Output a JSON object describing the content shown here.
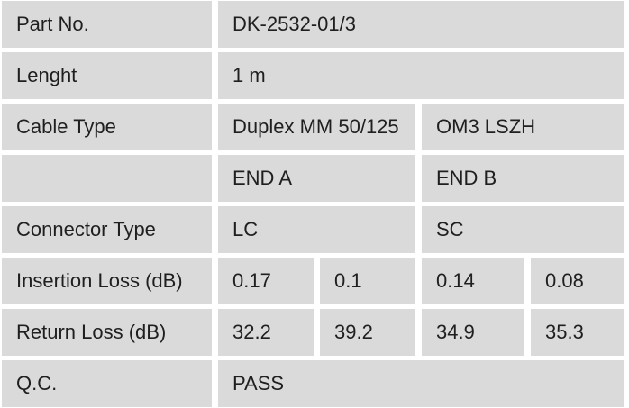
{
  "colors": {
    "cell_background": "#d9dad9",
    "grid_gap": "#ffffff",
    "text": "#1f1f1f"
  },
  "table": {
    "rows": [
      {
        "label": "Part No.",
        "cells": [
          {
            "text": "DK-2532-01/3"
          }
        ]
      },
      {
        "label": "Lenght",
        "cells": [
          {
            "text": "1 m"
          }
        ]
      },
      {
        "label": "Cable Type",
        "cells": [
          {
            "text": "Duplex MM 50/125"
          },
          {
            "text": "OM3 LSZH"
          }
        ]
      },
      {
        "label": "",
        "cells": [
          {
            "text": "END A"
          },
          {
            "text": "END B"
          }
        ]
      },
      {
        "label": "Connector Type",
        "cells": [
          {
            "text": "LC"
          },
          {
            "text": "SC"
          }
        ]
      },
      {
        "label": "Insertion Loss (dB)",
        "cells": [
          {
            "text": "0.17"
          },
          {
            "text": "0.1"
          },
          {
            "text": "0.14"
          },
          {
            "text": "0.08"
          }
        ]
      },
      {
        "label": "Return Loss (dB)",
        "cells": [
          {
            "text": "32.2"
          },
          {
            "text": "39.2"
          },
          {
            "text": "34.9"
          },
          {
            "text": "35.3"
          }
        ]
      },
      {
        "label": "Q.C.",
        "cells": [
          {
            "text": "PASS"
          }
        ]
      }
    ]
  }
}
